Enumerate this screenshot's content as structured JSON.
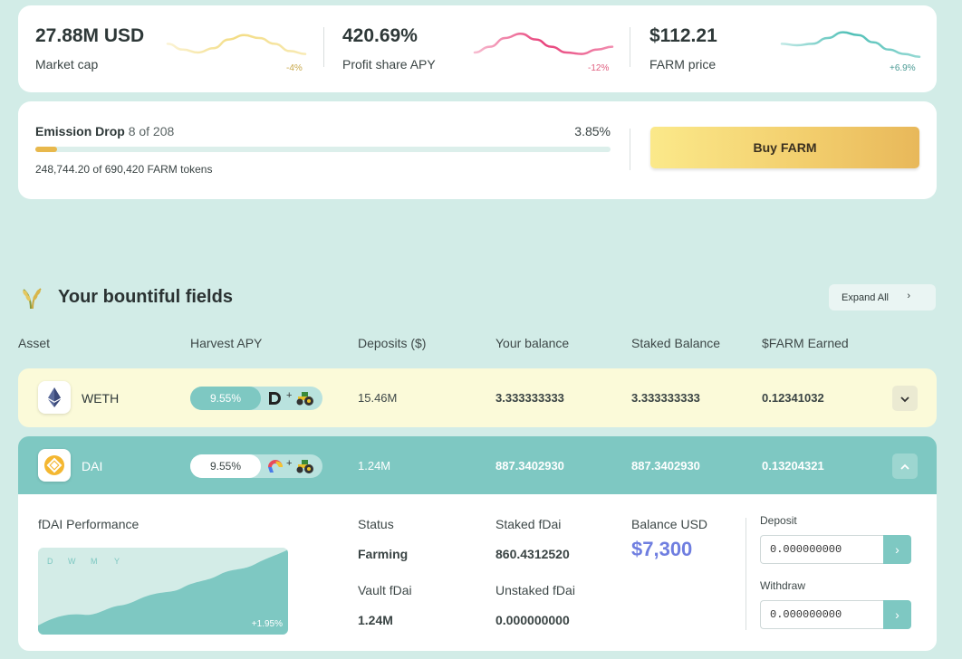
{
  "stats": [
    {
      "value": "27.88M USD",
      "label": "Market cap",
      "change": "-4%",
      "color": "#f3dc83",
      "change_color": "#c8a84a",
      "trend": [
        0.55,
        0.35,
        0.25,
        0.4,
        0.7,
        0.85,
        0.75,
        0.55,
        0.3,
        0.2
      ]
    },
    {
      "value": "420.69%",
      "label": "Profit share APY",
      "change": "-12%",
      "color": "#e8417a",
      "change_color": "#e06080",
      "trend": [
        0.25,
        0.45,
        0.75,
        0.9,
        0.7,
        0.45,
        0.25,
        0.2,
        0.35,
        0.45
      ]
    },
    {
      "value": "$112.21",
      "label": "FARM price",
      "change": "+6.9%",
      "color": "#4ebfb6",
      "change_color": "#4a9a94",
      "trend": [
        0.55,
        0.5,
        0.55,
        0.75,
        0.95,
        0.85,
        0.6,
        0.35,
        0.2,
        0.1
      ]
    }
  ],
  "emission": {
    "title": "Emission Drop",
    "count": "8 of 208",
    "percent": "3.85%",
    "tokens": "248,744.20 of 690,420 FARM tokens",
    "progress": 0.0385,
    "bar_color": "#e8b84c"
  },
  "buy_button_label": "Buy FARM",
  "fields": {
    "title": "Your bountiful fields",
    "expand_label": "Expand All",
    "columns": [
      "Asset",
      "Harvest APY",
      "Deposits ($)",
      "Your balance",
      "Staked Balance",
      "$FARM Earned"
    ]
  },
  "rows": [
    {
      "asset": "WETH",
      "apy": "9.55%",
      "deposits": "15.46M",
      "balance": "3.333333333",
      "staked": "3.333333333",
      "earned": "0.12341032",
      "toggle": "v"
    },
    {
      "asset": "DAI",
      "apy": "9.55%",
      "deposits": "1.24M",
      "balance": "887.3402930",
      "staked": "887.3402930",
      "earned": "0.13204321",
      "toggle": "^"
    }
  ],
  "detail": {
    "performance_title": "fDAI Performance",
    "ranges": [
      "D",
      "W",
      "M",
      "Y"
    ],
    "perf_change": "+1.95%",
    "status_label": "Status",
    "status_value": "Farming",
    "staked_label": "Staked fDai",
    "staked_value": "860.4312520",
    "balance_label": "Balance USD",
    "balance_value": "$7,300",
    "vault_label": "Vault fDai",
    "vault_value": "1.24M",
    "unstaked_label": "Unstaked fDai",
    "unstaked_value": "0.000000000",
    "deposit_label": "Deposit",
    "deposit_value": "0.000000000",
    "withdraw_label": "Withdraw",
    "withdraw_value": "0.000000000"
  },
  "colors": {
    "background": "#d2ece7",
    "teal": "#7ec8c2",
    "weth_row": "#fbfad9",
    "accent_purple": "#6f7ee0"
  }
}
